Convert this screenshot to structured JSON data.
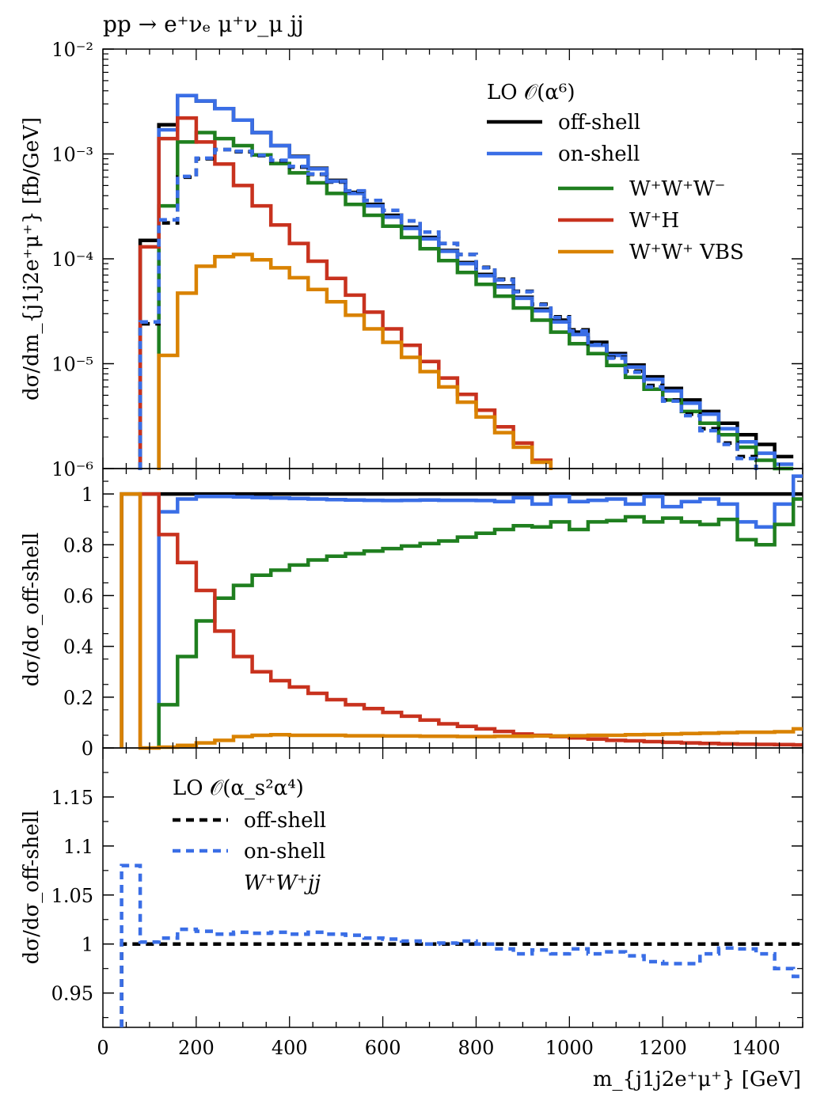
{
  "process_label": "pp → e⁺νₑ μ⁺ν_μ jj",
  "x_axis": {
    "label": "m_{j1j2e⁺μ⁺} [GeV]",
    "ticks": [
      0,
      200,
      400,
      600,
      800,
      1000,
      1200,
      1400
    ],
    "range": [
      0,
      1500
    ]
  },
  "colors": {
    "off_shell": "#000000",
    "on_shell": "#3a6ee6",
    "WWW": "#1f7f1f",
    "WH": "#c8321e",
    "VBS": "#d98200"
  },
  "chart_data": [
    {
      "type": "line",
      "panel": "top",
      "ylabel": "dσ/dm_{j1j2e⁺μ⁺} [fb/GeV]",
      "yscale": "log",
      "ylim": [
        1e-06,
        0.01
      ],
      "ytick_labels": [
        "10⁻²",
        "10⁻³",
        "10⁻⁴",
        "10⁻⁵",
        "10⁻⁶"
      ],
      "legend": {
        "title": "LO 𝒪(α⁶)",
        "entries": [
          "off-shell",
          "on-shell",
          "W⁺W⁺W⁻",
          "W⁺H",
          "W⁺W⁺ VBS"
        ],
        "placement": "top-right"
      },
      "x_edges": [
        80,
        120,
        160,
        200,
        240,
        280,
        320,
        360,
        400,
        440,
        480,
        520,
        560,
        600,
        640,
        680,
        720,
        760,
        800,
        840,
        880,
        920,
        960,
        1000,
        1040,
        1080,
        1120,
        1160,
        1200,
        1240,
        1280,
        1320,
        1360,
        1400,
        1440
      ],
      "series": [
        {
          "name": "off-shell",
          "color_key": "off_shell",
          "dashed": false,
          "values": [
            0.00015,
            0.0019,
            0.0036,
            0.0032,
            0.0027,
            0.0021,
            0.0016,
            0.0012,
            0.00095,
            0.00073,
            0.00056,
            0.00043,
            0.00033,
            0.00026,
            0.0002,
            0.00016,
            0.00012,
            9.2e-05,
            7.1e-05,
            5.5e-05,
            4.3e-05,
            3.3e-05,
            2.6e-05,
            2e-05,
            1.6e-05,
            1.25e-05,
            9.7e-06,
            7.5e-06,
            5.8e-06,
            4.5e-06,
            3.5e-06,
            2.7e-06,
            2.1e-06,
            1.7e-06,
            1.3e-06
          ]
        },
        {
          "name": "on-shell",
          "color_key": "on_shell",
          "dashed": false,
          "values": [
            null,
            0.0017,
            0.0036,
            0.0032,
            0.0027,
            0.0021,
            0.0016,
            0.0012,
            0.00094,
            0.00072,
            0.00055,
            0.00042,
            0.00032,
            0.00025,
            0.000195,
            0.000155,
            0.000118,
            9e-05,
            6.9e-05,
            5.4e-05,
            4.2e-05,
            3.2e-05,
            2.5e-05,
            1.9e-05,
            1.5e-05,
            1.2e-05,
            9.3e-06,
            7.1e-06,
            5.5e-06,
            4.2e-06,
            3.3e-06,
            2.4e-06,
            1.8e-06,
            1.4e-06,
            1.1e-06
          ]
        },
        {
          "name": "W⁺W⁺W⁻",
          "color_key": "WWW",
          "dashed": false,
          "values": [
            null,
            0.00032,
            0.0013,
            0.0016,
            0.0014,
            0.0012,
            0.00098,
            0.00081,
            0.00066,
            0.00053,
            0.00042,
            0.00033,
            0.00026,
            0.000205,
            0.00016,
            0.000125,
            9.6e-05,
            7.4e-05,
            5.7e-05,
            4.4e-05,
            3.4e-05,
            2.6e-05,
            2e-05,
            1.55e-05,
            1.25e-05,
            9.6e-06,
            7.4e-06,
            5.7e-06,
            4.5e-06,
            3.5e-06,
            2.7e-06,
            2.1e-06,
            1.6e-06,
            1.2e-06,
            1e-06
          ]
        },
        {
          "name": "W⁺H",
          "color_key": "WH",
          "dashed": false,
          "values": [
            0.00013,
            0.0014,
            0.0022,
            0.0013,
            0.0008,
            0.0005,
            0.00032,
            0.00021,
            0.00014,
            9.5e-05,
            6.5e-05,
            4.5e-05,
            3.1e-05,
            2.15e-05,
            1.5e-05,
            1.05e-05,
            7.3e-06,
            5.1e-06,
            3.6e-06,
            2.5e-06,
            1.75e-06,
            1.2e-06,
            null,
            null,
            null,
            null,
            null,
            null,
            null,
            null,
            null,
            null,
            null,
            null,
            null
          ]
        },
        {
          "name": "W⁺W⁺ VBS",
          "color_key": "VBS",
          "dashed": false,
          "values": [
            null,
            1.2e-05,
            4.7e-05,
            8.5e-05,
            0.000105,
            0.00011,
            9.8e-05,
            8.2e-05,
            6.6e-05,
            5.1e-05,
            3.9e-05,
            2.9e-05,
            2.15e-05,
            1.6e-05,
            1.15e-05,
            8.4e-06,
            6e-06,
            4.3e-06,
            3.1e-06,
            2.2e-06,
            1.6e-06,
            1.15e-06,
            null,
            null,
            null,
            null,
            null,
            null,
            null,
            null,
            null,
            null,
            null,
            null,
            null
          ]
        },
        {
          "name": "off-shell (α_s²α⁴)",
          "color_key": "off_shell",
          "dashed": true,
          "values": [
            2.4e-05,
            0.00022,
            0.0006,
            0.0009,
            0.0011,
            0.00105,
            0.00096,
            0.00086,
            0.00075,
            0.00064,
            0.00054,
            0.00044,
            0.00036,
            0.00029,
            0.00023,
            0.00018,
            0.00014,
            0.00011,
            8.3e-05,
            6.4e-05,
            4.9e-05,
            3.7e-05,
            2.8e-05,
            2.1e-05,
            1.55e-05,
            1.15e-05,
            8.5e-06,
            6.2e-06,
            4.5e-06,
            3.3e-06,
            2.4e-06,
            1.75e-06,
            1.3e-06,
            null,
            null
          ]
        },
        {
          "name": "on-shell (α_s²α⁴)",
          "color_key": "on_shell",
          "dashed": true,
          "values": [
            2.5e-05,
            0.000235,
            0.00061,
            0.00091,
            0.0011,
            0.00106,
            0.00097,
            0.00087,
            0.00076,
            0.000645,
            0.000545,
            0.000445,
            0.00036,
            0.00029,
            0.00023,
            0.00018,
            0.00014,
            0.00011,
            8.2e-05,
            6.3e-05,
            4.85e-05,
            3.65e-05,
            2.75e-05,
            2.05e-05,
            1.52e-05,
            1.13e-05,
            8.3e-06,
            6e-06,
            4.4e-06,
            3.2e-06,
            2.3e-06,
            1.7e-06,
            1.25e-06,
            null,
            null
          ]
        }
      ]
    },
    {
      "type": "line",
      "panel": "middle",
      "ylabel": "dσ/dσ_off-shell",
      "ylim": [
        0,
        1.1
      ],
      "ytick_labels": [
        "0",
        "0.2",
        "0.4",
        "0.6",
        "0.8",
        "1"
      ],
      "x_edges": [
        40,
        80,
        120,
        160,
        200,
        240,
        280,
        320,
        360,
        400,
        440,
        480,
        520,
        560,
        600,
        640,
        680,
        720,
        760,
        800,
        840,
        880,
        920,
        960,
        1000,
        1040,
        1080,
        1120,
        1160,
        1200,
        1240,
        1280,
        1320,
        1360,
        1400,
        1440,
        1480,
        1500
      ],
      "series": [
        {
          "name": "off-shell",
          "color_key": "off_shell",
          "values": [
            1,
            1,
            1,
            1,
            1,
            1,
            1,
            1,
            1,
            1,
            1,
            1,
            1,
            1,
            1,
            1,
            1,
            1,
            1,
            1,
            1,
            1,
            1,
            1,
            1,
            1,
            1,
            1,
            1,
            1,
            1,
            1,
            1,
            1,
            1,
            1,
            1
          ]
        },
        {
          "name": "on-shell",
          "color_key": "on_shell",
          "values": [
            null,
            null,
            0.93,
            0.98,
            0.99,
            0.99,
            0.988,
            0.986,
            0.984,
            0.982,
            0.98,
            0.978,
            0.976,
            0.975,
            0.974,
            0.975,
            0.976,
            0.975,
            0.975,
            0.974,
            0.97,
            0.985,
            0.96,
            0.99,
            0.97,
            0.975,
            0.98,
            0.96,
            0.99,
            0.95,
            0.97,
            0.98,
            0.96,
            0.89,
            0.87,
            0.96,
            1.07
          ]
        },
        {
          "name": "W⁺W⁺W⁻",
          "color_key": "WWW",
          "values": [
            null,
            null,
            0.17,
            0.36,
            0.5,
            0.59,
            0.64,
            0.68,
            0.7,
            0.72,
            0.74,
            0.755,
            0.765,
            0.775,
            0.785,
            0.795,
            0.805,
            0.815,
            0.83,
            0.845,
            0.86,
            0.875,
            0.87,
            0.89,
            0.86,
            0.89,
            0.895,
            0.91,
            0.89,
            0.905,
            0.89,
            0.88,
            0.9,
            0.82,
            0.8,
            0.88,
            0.98
          ]
        },
        {
          "name": "W⁺H",
          "color_key": "WH",
          "values": [
            null,
            1.0,
            0.84,
            0.73,
            0.62,
            0.46,
            0.36,
            0.3,
            0.265,
            0.24,
            0.215,
            0.19,
            0.17,
            0.155,
            0.14,
            0.125,
            0.11,
            0.095,
            0.085,
            0.075,
            0.065,
            0.055,
            0.05,
            0.045,
            0.04,
            0.035,
            0.03,
            0.028,
            0.025,
            0.022,
            0.02,
            0.018,
            0.016,
            0.015,
            0.014,
            0.013,
            0.012
          ]
        },
        {
          "name": "W⁺W⁺ VBS",
          "color_key": "VBS",
          "values": [
            1.0,
            0.0,
            0.003,
            0.01,
            0.02,
            0.03,
            0.045,
            0.05,
            0.052,
            0.05,
            0.05,
            0.05,
            0.048,
            0.048,
            0.047,
            0.047,
            0.046,
            0.046,
            0.045,
            0.045,
            0.046,
            0.046,
            0.047,
            0.047,
            0.048,
            0.05,
            0.05,
            0.052,
            0.053,
            0.055,
            0.057,
            0.058,
            0.06,
            0.062,
            0.062,
            0.064,
            0.075
          ]
        }
      ]
    },
    {
      "type": "line",
      "panel": "bottom",
      "ylabel": "dσ/dσ_off-shell",
      "ylim": [
        0.915,
        1.2
      ],
      "ytick_labels": [
        "0.95",
        "1",
        "1.05",
        "1.1",
        "1.15"
      ],
      "legend": {
        "title": "LO 𝒪(α_s²α⁴)",
        "entries": [
          "off-shell",
          "on-shell"
        ],
        "note": "W⁺W⁺jj",
        "placement": "top-left"
      },
      "x_edges": [
        40,
        80,
        120,
        160,
        200,
        240,
        280,
        320,
        360,
        400,
        440,
        480,
        520,
        560,
        600,
        640,
        680,
        720,
        760,
        800,
        840,
        880,
        920,
        960,
        1000,
        1040,
        1080,
        1120,
        1160,
        1200,
        1240,
        1280,
        1320,
        1360,
        1400,
        1440,
        1480,
        1500
      ],
      "series": [
        {
          "name": "off-shell",
          "color_key": "off_shell",
          "dashed": true,
          "values": [
            1,
            1,
            1,
            1,
            1,
            1,
            1,
            1,
            1,
            1,
            1,
            1,
            1,
            1,
            1,
            1,
            1,
            1,
            1,
            1,
            1,
            1,
            1,
            1,
            1,
            1,
            1,
            1,
            1,
            1,
            1,
            1,
            1,
            1,
            1,
            1,
            1
          ]
        },
        {
          "name": "on-shell",
          "color_key": "on_shell",
          "dashed": true,
          "values": [
            1.08,
            1.002,
            1.006,
            1.015,
            1.013,
            1.01,
            1.012,
            1.011,
            1.012,
            1.01,
            1.012,
            1.01,
            1.009,
            1.006,
            1.005,
            1.003,
            1.0,
            1.001,
            1.003,
            1.0,
            0.995,
            0.99,
            0.994,
            0.99,
            0.995,
            0.99,
            0.992,
            0.988,
            0.982,
            0.98,
            0.98,
            0.99,
            0.996,
            0.995,
            0.99,
            0.975,
            0.967
          ]
        }
      ]
    }
  ]
}
